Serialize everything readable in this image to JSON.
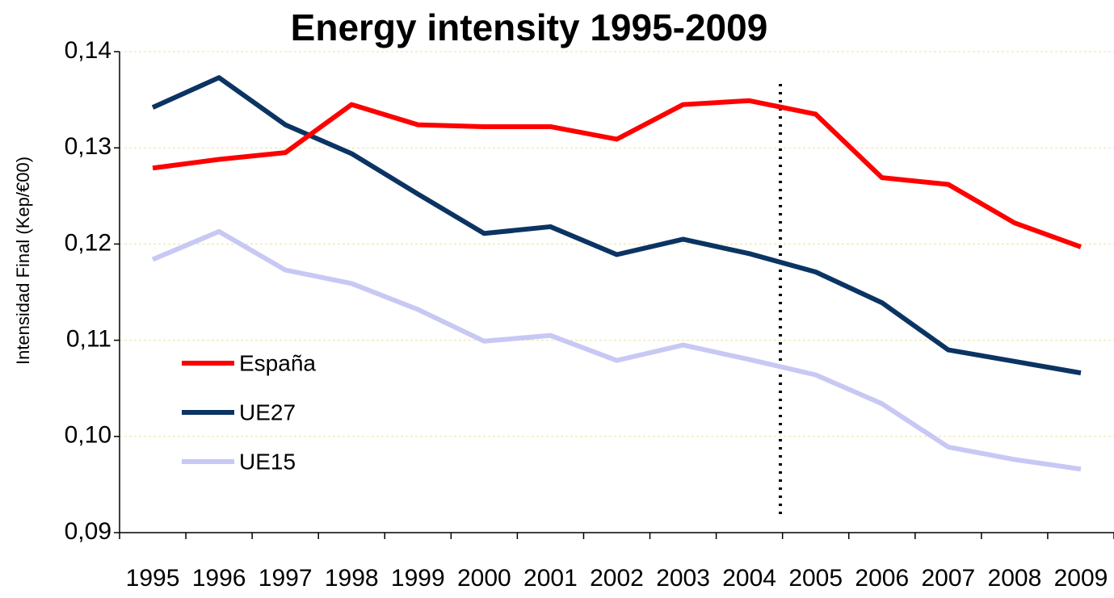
{
  "chart_data": {
    "type": "line",
    "title": "Energy intensity 1995-2009",
    "y_label": "Intensidad Final (Kep/€00)",
    "categories": [
      "1995",
      "1996",
      "1997",
      "1998",
      "1999",
      "2000",
      "2001",
      "2002",
      "2003",
      "2004",
      "2005",
      "2006",
      "2007",
      "2008",
      "2009"
    ],
    "series": [
      {
        "name": "España",
        "color": "#ff0000",
        "values": [
          0.1279,
          0.1288,
          0.1295,
          0.1345,
          0.1324,
          0.1322,
          0.1322,
          0.1309,
          0.1345,
          0.1349,
          0.1335,
          0.1269,
          0.1262,
          0.1222,
          0.1197
        ]
      },
      {
        "name": "UE27",
        "color": "#0b3463",
        "values": [
          0.1342,
          0.1373,
          0.1324,
          0.1294,
          0.1252,
          0.1211,
          0.1218,
          0.1189,
          0.1205,
          0.119,
          0.1171,
          0.1139,
          0.109,
          0.1078,
          0.1066
        ]
      },
      {
        "name": "UE15",
        "color": "#c8c8f5",
        "values": [
          0.1184,
          0.1213,
          0.1173,
          0.1159,
          0.1132,
          0.1099,
          0.1105,
          0.1079,
          0.1095,
          0.108,
          0.1064,
          0.1034,
          0.0989,
          0.0976,
          0.0966
        ]
      }
    ],
    "ylim": [
      0.09,
      0.14
    ],
    "yticks": [
      {
        "value": 0.09,
        "label": "0,09"
      },
      {
        "value": 0.1,
        "label": "0,10"
      },
      {
        "value": 0.11,
        "label": "0,11"
      },
      {
        "value": 0.12,
        "label": "0,12"
      },
      {
        "value": 0.13,
        "label": "0,13"
      },
      {
        "value": 0.14,
        "label": "0,14"
      }
    ],
    "grid": true
  }
}
